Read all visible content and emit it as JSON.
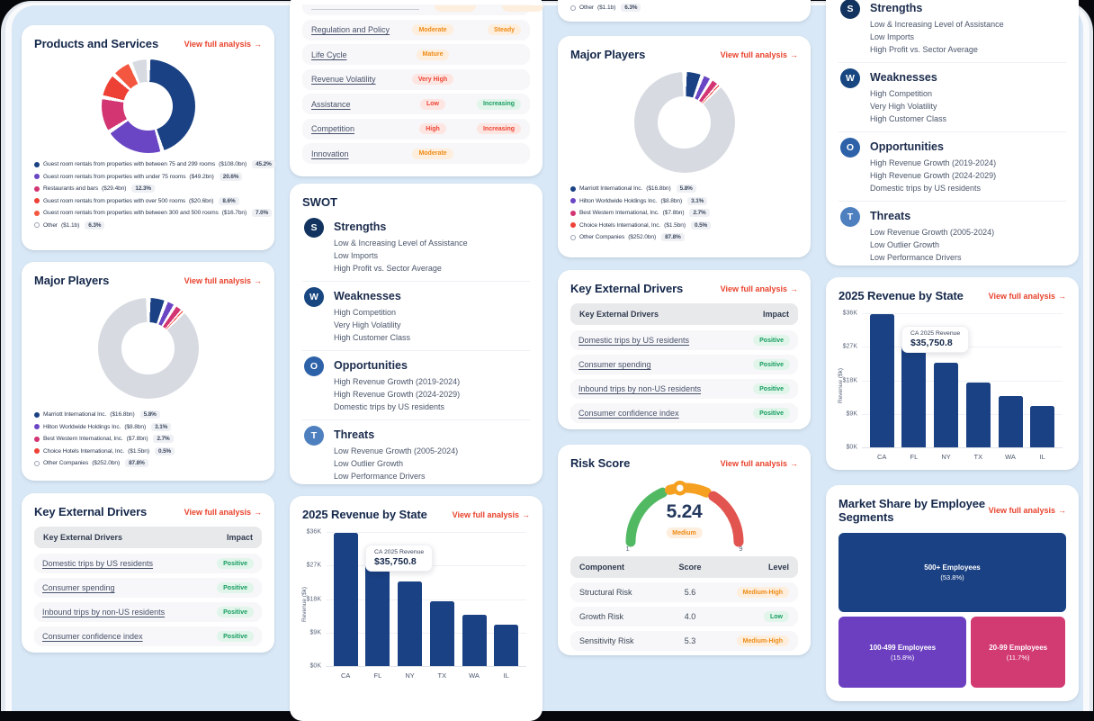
{
  "link_label": "View full analysis",
  "link_arrow": "→",
  "colors": {
    "page_bg": "#d9e8f6",
    "card_bg": "#ffffff",
    "accent_red_link": "#e8432d",
    "navy": "#1a4183",
    "purple": "#6a46c4",
    "magenta": "#d23572",
    "red": "#ee4136",
    "red_orange": "#f4573f",
    "gray_slice": "#d7dbe1",
    "badge_orange_text": "#ef8b16",
    "badge_green_text": "#169d5f",
    "badge_red_text": "#ee4433",
    "gauge_green": "#52b963",
    "gauge_orange": "#f5a020",
    "gauge_red": "#e25450"
  },
  "products": {
    "title": "Products and Services",
    "chart_data": {
      "type": "pie",
      "slices": [
        {
          "label": "Guest room rentals from properties with between 75 and 299 rooms",
          "value_label": "($108.0bn)",
          "pct": 45.2,
          "pct_label": "45.2%",
          "color": "#1a4183"
        },
        {
          "label": "Guest room rentals from properties with under 75 rooms",
          "value_label": "($49.2bn)",
          "pct": 20.6,
          "pct_label": "20.6%",
          "color": "#6a46c4"
        },
        {
          "label": "Restaurants and bars",
          "value_label": "($29.4bn)",
          "pct": 12.3,
          "pct_label": "12.3%",
          "color": "#d23572"
        },
        {
          "label": "Guest room rentals from properties with over 500 rooms",
          "value_label": "($20.6bn)",
          "pct": 8.6,
          "pct_label": "8.6%",
          "color": "#ee4136"
        },
        {
          "label": "Guest room rentals from properties with between 300 and 500 rooms",
          "value_label": "($16.7bn)",
          "pct": 7.0,
          "pct_label": "7.0%",
          "color": "#f4573f"
        },
        {
          "label": "Other",
          "value_label": "($1.1b)",
          "pct": 6.3,
          "pct_label": "6.3%",
          "color": "#d7dbe1",
          "outline_dot": true
        }
      ]
    }
  },
  "major_players": {
    "title": "Major Players",
    "chart_data": {
      "type": "pie",
      "slices": [
        {
          "label": "Marriott International Inc.",
          "value_label": "($16.8bn)",
          "pct": 5.8,
          "pct_label": "5.8%",
          "color": "#1a4183"
        },
        {
          "label": "Hilton Worldwide Holdings Inc.",
          "value_label": "($8.8bn)",
          "pct": 3.1,
          "pct_label": "3.1%",
          "color": "#6a46c4"
        },
        {
          "label": "Best Western International, Inc.",
          "value_label": "($7.8bn)",
          "pct": 2.7,
          "pct_label": "2.7%",
          "color": "#d23572"
        },
        {
          "label": "Choice Hotels International, Inc.",
          "value_label": "($1.5bn)",
          "pct": 0.5,
          "pct_label": "0.5%",
          "color": "#ee4136"
        },
        {
          "label": "Other Companies",
          "value_label": "($252.0bn)",
          "pct": 87.8,
          "pct_label": "87.8%",
          "color": "#d7dbe1",
          "outline_dot": true
        }
      ]
    }
  },
  "industry_metrics": {
    "rows": [
      {
        "label": "Regulation and Policy",
        "badges": [
          {
            "text": "Moderate",
            "tone": "orange"
          },
          {
            "text": "Steady",
            "tone": "orange"
          }
        ]
      },
      {
        "label": "Life Cycle",
        "badges": [
          {
            "text": "Mature",
            "tone": "orange"
          }
        ]
      },
      {
        "label": "Revenue Volatility",
        "badges": [
          {
            "text": "Very High",
            "tone": "red"
          }
        ]
      },
      {
        "label": "Assistance",
        "badges": [
          {
            "text": "Low",
            "tone": "red"
          },
          {
            "text": "Increasing",
            "tone": "green"
          }
        ]
      },
      {
        "label": "Competition",
        "badges": [
          {
            "text": "High",
            "tone": "red"
          },
          {
            "text": "Increasing",
            "tone": "red"
          }
        ]
      },
      {
        "label": "Innovation",
        "badges": [
          {
            "text": "Moderate",
            "tone": "orange"
          }
        ]
      }
    ]
  },
  "swot": {
    "title": "SWOT",
    "sections": [
      {
        "letter": "S",
        "title": "Strengths",
        "color": "#12335f",
        "items": [
          "Low & Increasing Level of Assistance",
          "Low Imports",
          "High Profit vs. Sector Average"
        ]
      },
      {
        "letter": "W",
        "title": "Weaknesses",
        "color": "#174680",
        "items": [
          "High Competition",
          "Very High Volatility",
          "High Customer Class"
        ]
      },
      {
        "letter": "O",
        "title": "Opportunities",
        "color": "#2d62a8",
        "items": [
          "High Revenue Growth (2019-2024)",
          "High Revenue Growth (2024-2029)",
          "Domestic trips by US residents"
        ]
      },
      {
        "letter": "T",
        "title": "Threats",
        "color": "#4e80c0",
        "items": [
          "Low Revenue Growth (2005-2024)",
          "Low Outlier Growth",
          "Low Performance Drivers"
        ]
      }
    ]
  },
  "key_drivers": {
    "title": "Key External Drivers",
    "header": {
      "name": "Key External Drivers",
      "impact": "Impact"
    },
    "rows": [
      {
        "label": "Domestic trips by US residents",
        "impact": "Positive",
        "tone": "green"
      },
      {
        "label": "Consumer spending",
        "impact": "Positive",
        "tone": "green"
      },
      {
        "label": "Inbound trips by non-US residents",
        "impact": "Positive",
        "tone": "green"
      },
      {
        "label": "Consumer confidence index",
        "impact": "Positive",
        "tone": "green"
      }
    ]
  },
  "risk": {
    "title": "Risk Score",
    "score": "5.24",
    "level": "Medium",
    "level_tone": "orange",
    "scale_min": "1",
    "scale_max": "9",
    "chart_data": {
      "type": "gauge",
      "value": 5.24,
      "min": 1,
      "max": 9,
      "label": "Medium"
    },
    "table": {
      "headers": [
        "Component",
        "Score",
        "Level"
      ],
      "rows": [
        {
          "component": "Structural Risk",
          "score": "5.6",
          "level": "Medium-High",
          "tone": "orange"
        },
        {
          "component": "Growth Risk",
          "score": "4.0",
          "level": "Low",
          "tone": "green"
        },
        {
          "component": "Sensitivity Risk",
          "score": "5.3",
          "level": "Medium-High",
          "tone": "orange"
        }
      ]
    }
  },
  "revenue_chart": {
    "title": "2025 Revenue by State",
    "ylabel": "Revenue ($k)",
    "chart_data": {
      "type": "bar",
      "categories": [
        "CA",
        "FL",
        "NY",
        "TX",
        "WA",
        "IL"
      ],
      "values": [
        35750.8,
        28100,
        22800,
        17400,
        13700,
        11000
      ],
      "ylim": [
        0,
        36000
      ],
      "yticks": [
        "$36K",
        "$27K",
        "$18K",
        "$9K",
        "$0K"
      ]
    },
    "tooltip": {
      "label": "CA 2025 Revenue",
      "value": "$35,750.8"
    }
  },
  "treemap": {
    "title": "Market Share by Employee Segments",
    "chart_data": {
      "type": "treemap",
      "segments": [
        {
          "label": "500+ Employees",
          "pct": 53.8,
          "pct_label": "(53.8%)",
          "color": "#1a4183"
        },
        {
          "label": "100-499 Employees",
          "pct": 15.8,
          "pct_label": "(15.8%)",
          "color": "#6b3fc0"
        },
        {
          "label": "20-99 Employees",
          "pct": 11.7,
          "pct_label": "(11.7%)",
          "color": "#d23a72"
        }
      ]
    }
  }
}
